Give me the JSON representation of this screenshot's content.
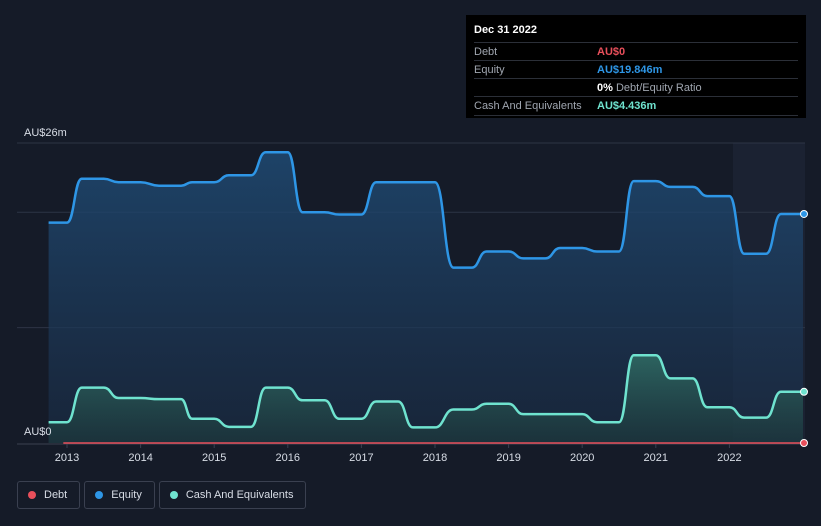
{
  "tooltip": {
    "date": "Dec 31 2022",
    "debt_label": "Debt",
    "debt_value": "AU$0",
    "equity_label": "Equity",
    "equity_value": "AU$19.846m",
    "ratio_value": "0%",
    "ratio_label": "Debt/Equity Ratio",
    "cash_label": "Cash And Equivalents",
    "cash_value": "AU$4.436m"
  },
  "legend": {
    "debt": "Debt",
    "equity": "Equity",
    "cash": "Cash And Equivalents"
  },
  "colors": {
    "debt": "#e84f5b",
    "equity": "#2e96e6",
    "cash": "#6fe3cf",
    "background": "#151b28"
  },
  "chart_data": {
    "type": "area",
    "ylabel_top": "AU$26m",
    "ylabel_bottom": "AU$0",
    "ylim": [
      0,
      26
    ],
    "xlim": [
      2012.7,
      2023.0
    ],
    "x_ticks": [
      "2013",
      "2014",
      "2015",
      "2016",
      "2017",
      "2018",
      "2019",
      "2020",
      "2021",
      "2022"
    ],
    "series": [
      {
        "name": "Equity",
        "points": [
          [
            2012.75,
            19.1
          ],
          [
            2013.0,
            19.1
          ],
          [
            2013.2,
            22.9
          ],
          [
            2013.5,
            22.9
          ],
          [
            2013.7,
            22.6
          ],
          [
            2014.0,
            22.6
          ],
          [
            2014.25,
            22.3
          ],
          [
            2014.55,
            22.3
          ],
          [
            2014.7,
            22.6
          ],
          [
            2015.0,
            22.6
          ],
          [
            2015.2,
            23.2
          ],
          [
            2015.5,
            23.2
          ],
          [
            2015.7,
            25.2
          ],
          [
            2016.0,
            25.2
          ],
          [
            2016.2,
            20.0
          ],
          [
            2016.5,
            20.0
          ],
          [
            2016.7,
            19.8
          ],
          [
            2017.0,
            19.8
          ],
          [
            2017.2,
            22.6
          ],
          [
            2017.5,
            22.6
          ],
          [
            2018.0,
            22.6
          ],
          [
            2018.25,
            15.2
          ],
          [
            2018.5,
            15.2
          ],
          [
            2018.7,
            16.6
          ],
          [
            2019.0,
            16.6
          ],
          [
            2019.2,
            16.0
          ],
          [
            2019.5,
            16.0
          ],
          [
            2019.7,
            16.9
          ],
          [
            2020.0,
            16.9
          ],
          [
            2020.2,
            16.6
          ],
          [
            2020.5,
            16.6
          ],
          [
            2020.7,
            22.7
          ],
          [
            2021.0,
            22.7
          ],
          [
            2021.2,
            22.2
          ],
          [
            2021.5,
            22.2
          ],
          [
            2021.7,
            21.4
          ],
          [
            2022.0,
            21.4
          ],
          [
            2022.2,
            16.4
          ],
          [
            2022.5,
            16.4
          ],
          [
            2022.7,
            19.85
          ],
          [
            2023.0,
            19.85
          ]
        ]
      },
      {
        "name": "Cash And Equivalents",
        "points": [
          [
            2012.75,
            1.8
          ],
          [
            2013.0,
            1.8
          ],
          [
            2013.2,
            4.8
          ],
          [
            2013.5,
            4.8
          ],
          [
            2013.7,
            3.9
          ],
          [
            2014.0,
            3.9
          ],
          [
            2014.25,
            3.8
          ],
          [
            2014.55,
            3.8
          ],
          [
            2014.7,
            2.1
          ],
          [
            2015.0,
            2.1
          ],
          [
            2015.2,
            1.4
          ],
          [
            2015.5,
            1.4
          ],
          [
            2015.7,
            4.8
          ],
          [
            2016.0,
            4.8
          ],
          [
            2016.2,
            3.7
          ],
          [
            2016.5,
            3.7
          ],
          [
            2016.7,
            2.1
          ],
          [
            2017.0,
            2.1
          ],
          [
            2017.2,
            3.6
          ],
          [
            2017.5,
            3.6
          ],
          [
            2017.7,
            1.35
          ],
          [
            2018.0,
            1.35
          ],
          [
            2018.25,
            2.9
          ],
          [
            2018.5,
            2.9
          ],
          [
            2018.7,
            3.4
          ],
          [
            2019.0,
            3.4
          ],
          [
            2019.2,
            2.5
          ],
          [
            2019.5,
            2.5
          ],
          [
            2019.7,
            2.5
          ],
          [
            2020.0,
            2.5
          ],
          [
            2020.2,
            1.8
          ],
          [
            2020.5,
            1.8
          ],
          [
            2020.7,
            7.6
          ],
          [
            2021.0,
            7.6
          ],
          [
            2021.2,
            5.6
          ],
          [
            2021.5,
            5.6
          ],
          [
            2021.7,
            3.1
          ],
          [
            2022.0,
            3.1
          ],
          [
            2022.2,
            2.2
          ],
          [
            2022.5,
            2.2
          ],
          [
            2022.7,
            4.44
          ],
          [
            2023.0,
            4.44
          ]
        ]
      },
      {
        "name": "Debt",
        "points": [
          [
            2012.95,
            0
          ],
          [
            2023.0,
            0
          ]
        ]
      }
    ]
  }
}
